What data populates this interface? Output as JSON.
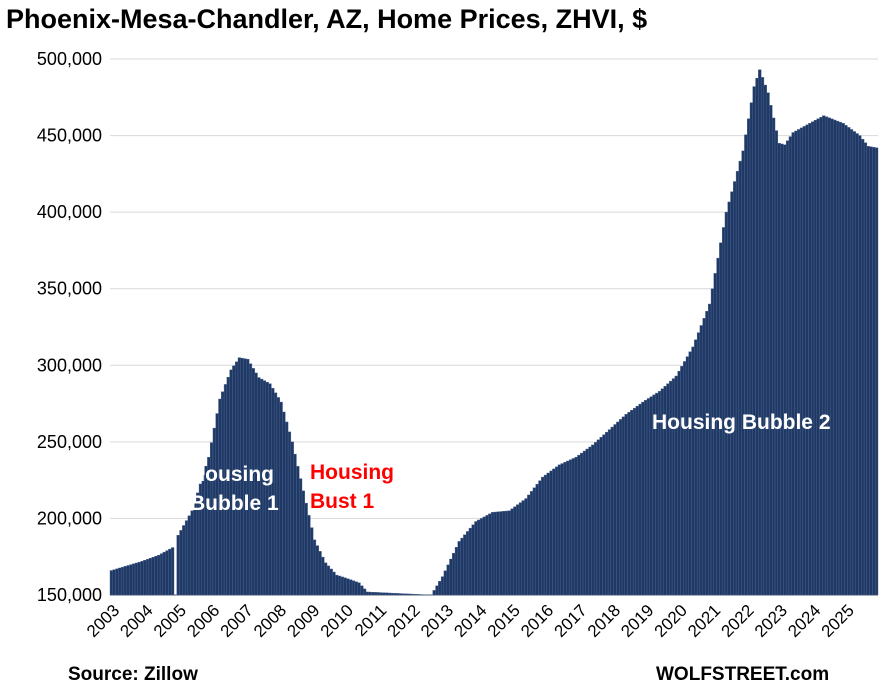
{
  "title": "Phoenix-Mesa-Chandler, AZ, Home Prices, ZHVI, $",
  "source": "Source: Zillow",
  "brand": "WOLFSTREET.com",
  "annotations": {
    "bubble1_line1": "Housing",
    "bubble1_line2": "Bubble 1",
    "bust1_line1": "Housing",
    "bust1_line2": "Bust 1",
    "bubble2": "Housing Bubble 2"
  },
  "colors": {
    "bar_fill": "#1f3864",
    "bar_edge": "#4a6491",
    "grid": "#d9d9d9",
    "bust_label": "#ff0000",
    "bubble_label": "#ffffff"
  },
  "chart_data": {
    "type": "bar",
    "title": "Phoenix-Mesa-Chandler, AZ, Home Prices, ZHVI, $",
    "xlabel": "",
    "ylabel": "",
    "ylim": [
      150000,
      500000
    ],
    "y_ticks": [
      "150,000",
      "200,000",
      "250,000",
      "300,000",
      "350,000",
      "400,000",
      "450,000",
      "500,000"
    ],
    "grid": true,
    "frequency": "monthly",
    "x_tick_labels": [
      "2003",
      "2004",
      "2005",
      "2006",
      "2007",
      "2008",
      "2009",
      "2010",
      "2011",
      "2012",
      "2013",
      "2014",
      "2015",
      "2016",
      "2017",
      "2018",
      "2019",
      "2020",
      "2021",
      "2022",
      "2023",
      "2024",
      "2025"
    ],
    "series": [
      {
        "anchors": [
          [
            "2003-01",
            166000
          ],
          [
            "2003-12",
            172000
          ],
          [
            "2004-06",
            176000
          ],
          [
            "2004-11",
            181000
          ],
          [
            "2004-12",
            null
          ],
          [
            "2005-01",
            189000
          ],
          [
            "2005-06",
            205000
          ],
          [
            "2005-12",
            240000
          ],
          [
            "2006-04",
            278000
          ],
          [
            "2006-08",
            297000
          ],
          [
            "2006-11",
            305000
          ],
          [
            "2007-02",
            304000
          ],
          [
            "2007-06",
            292000
          ],
          [
            "2007-10",
            288000
          ],
          [
            "2008-02",
            276000
          ],
          [
            "2008-06",
            250000
          ],
          [
            "2008-10",
            218000
          ],
          [
            "2009-02",
            186000
          ],
          [
            "2009-06",
            171000
          ],
          [
            "2009-10",
            163000
          ],
          [
            "2010-03",
            160000
          ],
          [
            "2010-06",
            158000
          ],
          [
            "2010-09",
            152000
          ],
          [
            "2012-08",
            150000
          ],
          [
            "2012-12",
            162000
          ],
          [
            "2013-06",
            185000
          ],
          [
            "2013-12",
            198000
          ],
          [
            "2014-06",
            204000
          ],
          [
            "2014-12",
            205000
          ],
          [
            "2015-06",
            213000
          ],
          [
            "2015-12",
            227000
          ],
          [
            "2016-06",
            235000
          ],
          [
            "2016-12",
            240000
          ],
          [
            "2017-06",
            248000
          ],
          [
            "2017-12",
            258000
          ],
          [
            "2018-06",
            268000
          ],
          [
            "2018-12",
            276000
          ],
          [
            "2019-06",
            283000
          ],
          [
            "2019-12",
            293000
          ],
          [
            "2020-06",
            312000
          ],
          [
            "2020-12",
            340000
          ],
          [
            "2021-06",
            400000
          ],
          [
            "2021-12",
            440000
          ],
          [
            "2022-04",
            482000
          ],
          [
            "2022-06",
            493000
          ],
          [
            "2022-09",
            478000
          ],
          [
            "2023-01",
            445000
          ],
          [
            "2023-03",
            444000
          ],
          [
            "2023-06",
            452000
          ],
          [
            "2023-12",
            458000
          ],
          [
            "2024-05",
            463000
          ],
          [
            "2024-12",
            458000
          ],
          [
            "2025-06",
            450000
          ],
          [
            "2025-09",
            443000
          ],
          [
            "2025-12",
            442000
          ]
        ]
      }
    ]
  }
}
